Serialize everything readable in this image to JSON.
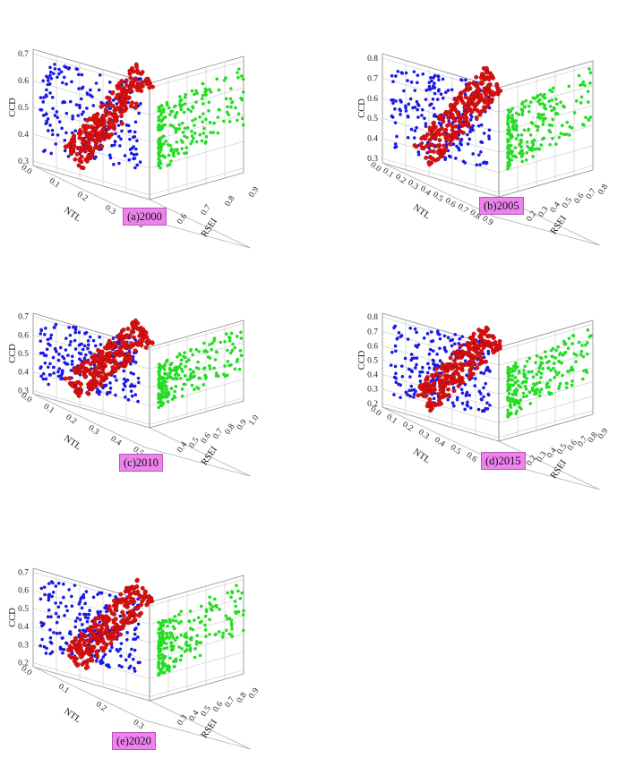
{
  "chart_data": [
    {
      "type": "scatter",
      "title": "(a)2000",
      "xlabel": "NTL",
      "ylabel": "RSEI",
      "zlabel": "CCD",
      "ntl_ticks": [
        "0.0",
        "0.1",
        "0.2",
        "0.3",
        "0.5"
      ],
      "rsei_ticks": [
        "0.6",
        "0.7",
        "0.8",
        "0.9"
      ],
      "ccd_ticks": [
        "0.3",
        "0.4",
        "0.5",
        "0.6",
        "0.7"
      ],
      "series_colors": {
        "ntl_ccd": "#1a1ae6",
        "coupled": "#dd1111",
        "rsei_ccd": "#22dd22"
      }
    },
    {
      "type": "scatter",
      "title": "(b)2005",
      "xlabel": "NTL",
      "ylabel": "RSEI",
      "zlabel": "CCD",
      "ntl_ticks": [
        "0.0",
        "0.1",
        "0.2",
        "0.3",
        "0.4",
        "0.5",
        "0.6",
        "0.7",
        "0.8",
        "0.9"
      ],
      "rsei_ticks": [
        "0.2",
        "0.3",
        "0.4",
        "0.5",
        "0.6",
        "0.7",
        "0.8"
      ],
      "ccd_ticks": [
        "0.3",
        "0.4",
        "0.5",
        "0.6",
        "0.7",
        "0.8"
      ],
      "series_colors": {
        "ntl_ccd": "#1a1ae6",
        "coupled": "#dd1111",
        "rsei_ccd": "#22dd22"
      }
    },
    {
      "type": "scatter",
      "title": "(c)2010",
      "xlabel": "NTL",
      "ylabel": "RSEI",
      "zlabel": "CCD",
      "ntl_ticks": [
        "0.0",
        "0.1",
        "0.2",
        "0.3",
        "0.4",
        "0.5"
      ],
      "rsei_ticks": [
        "0.4",
        "0.5",
        "0.6",
        "0.7",
        "0.8",
        "0.9",
        "1.0"
      ],
      "ccd_ticks": [
        "0.3",
        "0.4",
        "0.5",
        "0.6",
        "0.7"
      ],
      "series_colors": {
        "ntl_ccd": "#1a1ae6",
        "coupled": "#dd1111",
        "rsei_ccd": "#22dd22"
      }
    },
    {
      "type": "scatter",
      "title": "(d)2015",
      "xlabel": "NTL",
      "ylabel": "RSEI",
      "zlabel": "CCD",
      "ntl_ticks": [
        "0.0",
        "0.1",
        "0.2",
        "0.3",
        "0.4",
        "0.5",
        "0.6",
        "0.7"
      ],
      "rsei_ticks": [
        "0.2",
        "0.3",
        "0.4",
        "0.5",
        "0.6",
        "0.7",
        "0.8",
        "0.9"
      ],
      "ccd_ticks": [
        "0.2",
        "0.3",
        "0.4",
        "0.5",
        "0.6",
        "0.7",
        "0.8"
      ],
      "series_colors": {
        "ntl_ccd": "#1a1ae6",
        "coupled": "#dd1111",
        "rsei_ccd": "#22dd22"
      }
    },
    {
      "type": "scatter",
      "title": "(e)2020",
      "xlabel": "NTL",
      "ylabel": "RSEI",
      "zlabel": "CCD",
      "ntl_ticks": [
        "0.0",
        "0.1",
        "0.2",
        "0.3"
      ],
      "rsei_ticks": [
        "0.3",
        "0.4",
        "0.5",
        "0.6",
        "0.7",
        "0.8",
        "0.9"
      ],
      "ccd_ticks": [
        "0.2",
        "0.3",
        "0.4",
        "0.5",
        "0.6",
        "0.7"
      ],
      "series_colors": {
        "ntl_ccd": "#1a1ae6",
        "coupled": "#dd1111",
        "rsei_ccd": "#22dd22"
      }
    }
  ]
}
